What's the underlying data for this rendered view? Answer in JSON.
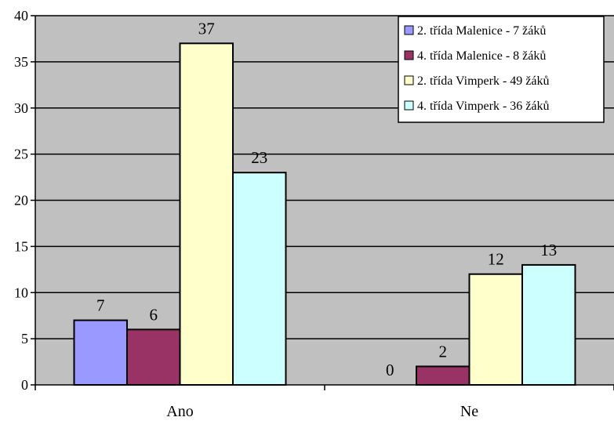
{
  "chart_data": {
    "type": "bar",
    "title": "",
    "xlabel": "",
    "ylabel": "",
    "categories": [
      "Ano",
      "Ne"
    ],
    "ylim": [
      0,
      40
    ],
    "yticks": [
      "0",
      "5",
      "10",
      "15",
      "20",
      "25",
      "30",
      "35",
      "40"
    ],
    "grid": true,
    "plot_background": "#c0c0c0",
    "legend_position": "top-right",
    "series": [
      {
        "name": "2. třída Malenice - 7 žáků",
        "color": "#9999ff",
        "values": [
          7,
          0
        ],
        "labels": [
          "7",
          "0"
        ]
      },
      {
        "name": "4. třída Malenice - 8 žáků",
        "color": "#993366",
        "values": [
          6,
          2
        ],
        "labels": [
          "6",
          "2"
        ]
      },
      {
        "name": "2. třída Vimperk - 49 žáků",
        "color": "#ffffcc",
        "values": [
          37,
          12
        ],
        "labels": [
          "37",
          "12"
        ]
      },
      {
        "name": "4. třída Vimperk - 36 žáků",
        "color": "#ccffff",
        "values": [
          23,
          13
        ],
        "labels": [
          "23",
          "13"
        ]
      }
    ]
  }
}
